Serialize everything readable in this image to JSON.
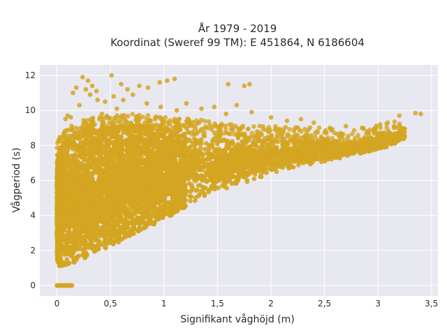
{
  "chart_data": {
    "type": "scatter",
    "title_line1": "År 1979 - 2019",
    "title_line2": "Koordinat (Sweref 99 TM): E 451864, N 6186604",
    "xlabel": "Signifikant våghöjd (m)",
    "ylabel": "Vågperiod (s)",
    "xlim": [
      -0.16,
      3.56
    ],
    "ylim": [
      -0.6,
      12.6
    ],
    "xticks": [
      0,
      0.5,
      1,
      1.5,
      2,
      2.5,
      3,
      3.5
    ],
    "xtick_labels": [
      "0",
      "0,5",
      "1",
      "1,5",
      "2",
      "2,5",
      "3",
      "3,5"
    ],
    "yticks": [
      0,
      2,
      4,
      6,
      8,
      10,
      12
    ],
    "ytick_labels": [
      "0",
      "2",
      "4",
      "6",
      "8",
      "10",
      "12"
    ],
    "grid": true,
    "legend": false,
    "marker_color": "#d4a520",
    "plot_background": "#e8e8f0",
    "point_cloud": {
      "dense_region": [
        {
          "x": 0.02,
          "y_min": 1.1,
          "y_max": 7.8
        },
        {
          "x": 0.1,
          "y_min": 1.2,
          "y_max": 8.4
        },
        {
          "x": 0.25,
          "y_min": 1.5,
          "y_max": 8.9
        },
        {
          "x": 0.5,
          "y_min": 2.2,
          "y_max": 9.1
        },
        {
          "x": 0.75,
          "y_min": 3.0,
          "y_max": 9.2
        },
        {
          "x": 1.0,
          "y_min": 3.8,
          "y_max": 9.0
        },
        {
          "x": 1.25,
          "y_min": 4.6,
          "y_max": 8.9
        },
        {
          "x": 1.5,
          "y_min": 5.2,
          "y_max": 8.7
        },
        {
          "x": 1.75,
          "y_min": 5.8,
          "y_max": 8.5
        },
        {
          "x": 2.0,
          "y_min": 6.3,
          "y_max": 8.5
        },
        {
          "x": 2.25,
          "y_min": 6.7,
          "y_max": 8.4
        },
        {
          "x": 2.5,
          "y_min": 7.0,
          "y_max": 8.4
        },
        {
          "x": 2.75,
          "y_min": 7.3,
          "y_max": 8.3
        },
        {
          "x": 3.0,
          "y_min": 7.7,
          "y_max": 8.6
        },
        {
          "x": 3.25,
          "y_min": 8.3,
          "y_max": 8.8
        }
      ],
      "zero_period_points": {
        "x_min": 0.0,
        "x_max": 0.14,
        "y": 0
      },
      "outliers": [
        {
          "x": 0.24,
          "y": 11.9
        },
        {
          "x": 0.29,
          "y": 11.7
        },
        {
          "x": 0.33,
          "y": 11.4
        },
        {
          "x": 0.18,
          "y": 11.3
        },
        {
          "x": 0.27,
          "y": 11.2
        },
        {
          "x": 0.37,
          "y": 11.1
        },
        {
          "x": 0.15,
          "y": 11.0
        },
        {
          "x": 0.31,
          "y": 10.9
        },
        {
          "x": 0.51,
          "y": 12.0
        },
        {
          "x": 0.6,
          "y": 11.5
        },
        {
          "x": 0.66,
          "y": 11.2
        },
        {
          "x": 0.77,
          "y": 11.4
        },
        {
          "x": 0.85,
          "y": 11.3
        },
        {
          "x": 0.96,
          "y": 11.6
        },
        {
          "x": 1.03,
          "y": 11.7
        },
        {
          "x": 1.1,
          "y": 11.8
        },
        {
          "x": 1.6,
          "y": 11.5
        },
        {
          "x": 1.75,
          "y": 11.4
        },
        {
          "x": 1.8,
          "y": 11.5
        },
        {
          "x": 0.53,
          "y": 10.8
        },
        {
          "x": 0.62,
          "y": 10.6
        },
        {
          "x": 0.71,
          "y": 10.9
        },
        {
          "x": 0.45,
          "y": 10.5
        },
        {
          "x": 0.84,
          "y": 10.4
        },
        {
          "x": 0.21,
          "y": 10.3
        },
        {
          "x": 0.38,
          "y": 10.6
        },
        {
          "x": 0.08,
          "y": 9.5
        },
        {
          "x": 0.1,
          "y": 9.7
        },
        {
          "x": 0.13,
          "y": 9.6
        },
        {
          "x": 0.42,
          "y": 9.8
        },
        {
          "x": 0.56,
          "y": 10.1
        },
        {
          "x": 0.97,
          "y": 10.2
        },
        {
          "x": 1.12,
          "y": 10.0
        },
        {
          "x": 1.21,
          "y": 10.4
        },
        {
          "x": 1.35,
          "y": 10.1
        },
        {
          "x": 1.47,
          "y": 10.2
        },
        {
          "x": 1.58,
          "y": 9.8
        },
        {
          "x": 1.68,
          "y": 10.3
        },
        {
          "x": 1.82,
          "y": 9.9
        },
        {
          "x": 2.0,
          "y": 9.6
        },
        {
          "x": 2.15,
          "y": 9.4
        },
        {
          "x": 2.28,
          "y": 9.5
        },
        {
          "x": 2.4,
          "y": 9.3
        },
        {
          "x": 2.55,
          "y": 9.0
        },
        {
          "x": 2.7,
          "y": 9.1
        },
        {
          "x": 2.85,
          "y": 9.0
        },
        {
          "x": 3.02,
          "y": 9.2
        },
        {
          "x": 3.15,
          "y": 9.1
        },
        {
          "x": 3.2,
          "y": 9.7
        },
        {
          "x": 3.35,
          "y": 9.85
        },
        {
          "x": 3.4,
          "y": 9.8
        },
        {
          "x": 2.35,
          "y": 8.9
        },
        {
          "x": 2.65,
          "y": 8.7
        },
        {
          "x": 2.9,
          "y": 8.8
        }
      ]
    }
  }
}
